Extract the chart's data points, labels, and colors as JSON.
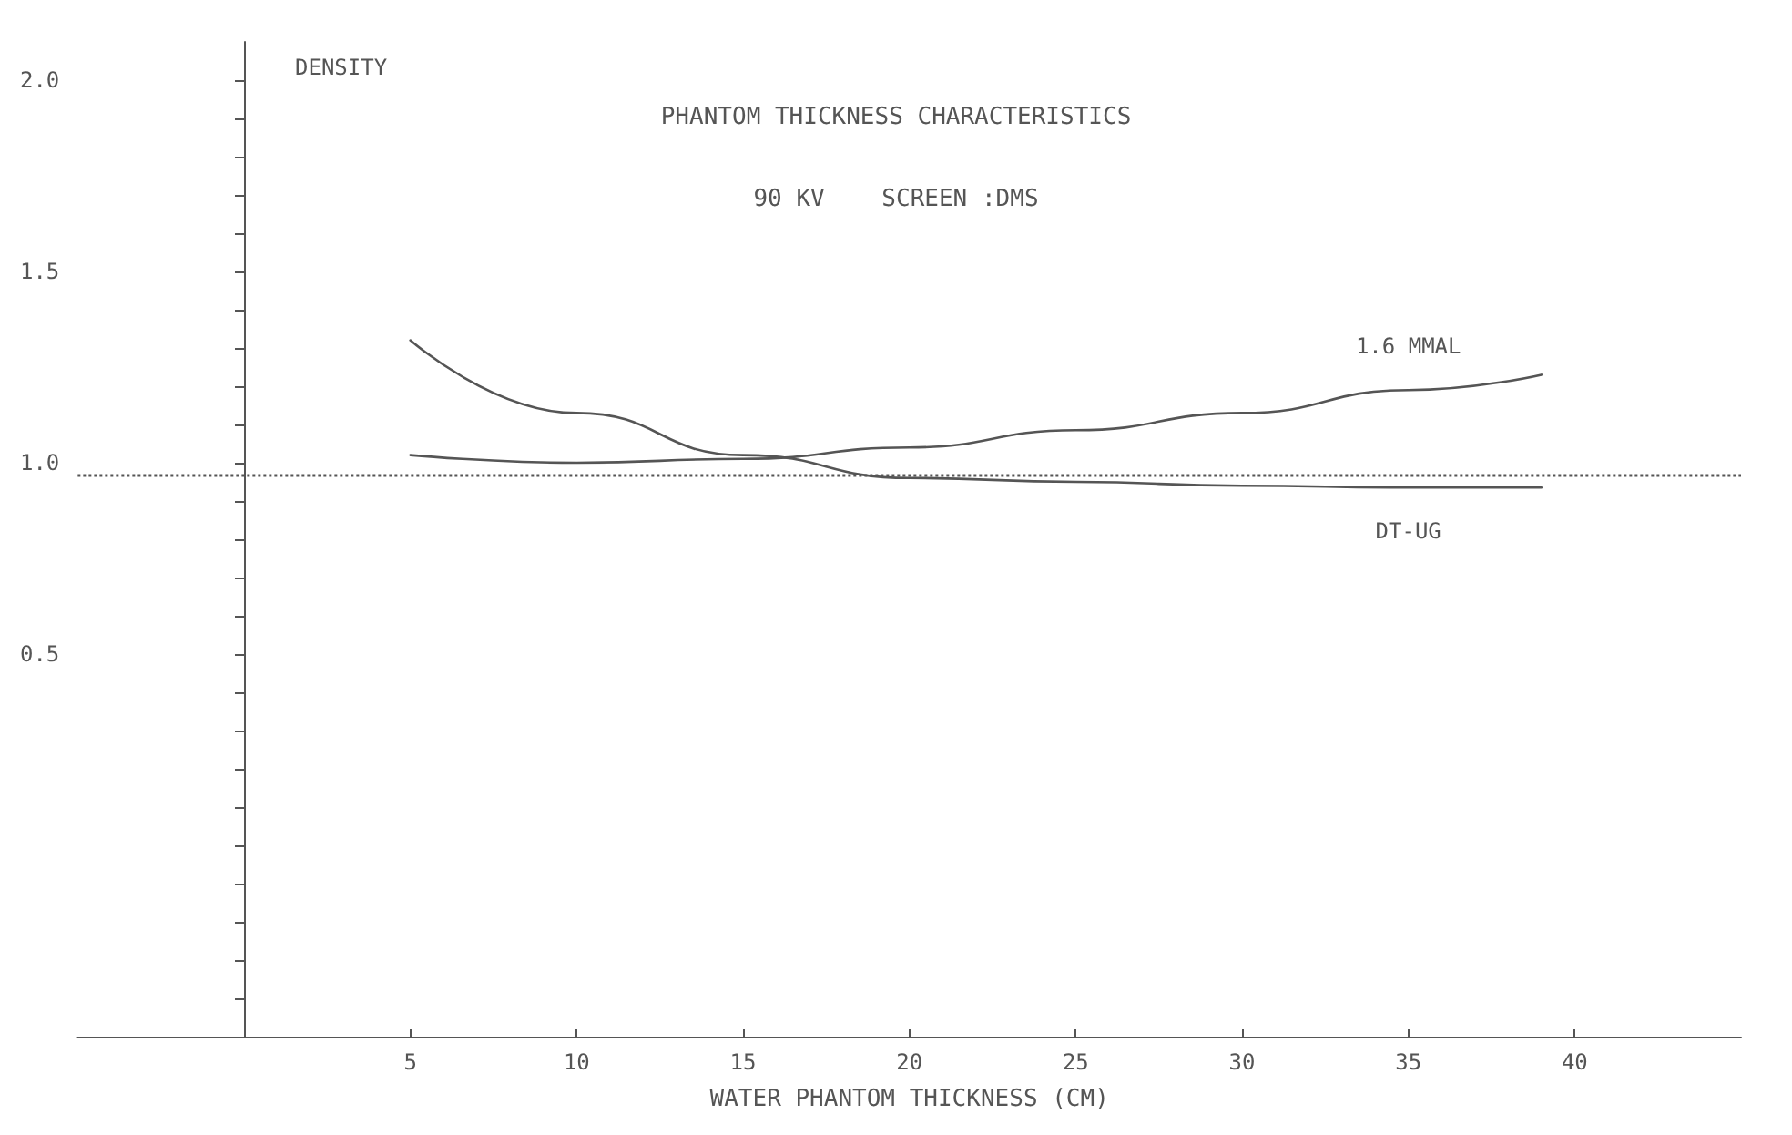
{
  "chart_data": {
    "type": "line",
    "title": "PHANTOM THICKNESS CHARACTERISTICS",
    "subtitle": "90 KV    SCREEN :DMS",
    "xlabel": "WATER PHANTOM THICKNESS (CM)",
    "ylabel": "DENSITY",
    "x": [
      5,
      10,
      15,
      20,
      25,
      30,
      35,
      39
    ],
    "series": [
      {
        "name": "1.6 MMAL",
        "color": "#555555",
        "values": [
          1.02,
          1.0,
          1.01,
          1.04,
          1.085,
          1.13,
          1.19,
          1.23
        ]
      },
      {
        "name": "DT-UG",
        "color": "#555555",
        "values": [
          1.32,
          1.13,
          1.02,
          0.96,
          0.95,
          0.94,
          0.935,
          0.935
        ]
      }
    ],
    "xlim": [
      -5,
      45
    ],
    "ylim": [
      -0.5,
      2.1
    ],
    "xticks": [
      5,
      10,
      15,
      20,
      25,
      30,
      35,
      40
    ],
    "yticks": [
      {
        "value": -0.4,
        "label": null
      },
      {
        "value": -0.3,
        "label": null
      },
      {
        "value": -0.2,
        "label": null
      },
      {
        "value": -0.1,
        "label": null
      },
      {
        "value": 0,
        "label": null
      },
      {
        "value": 0.1,
        "label": null
      },
      {
        "value": 0.2,
        "label": null
      },
      {
        "value": 0.3,
        "label": null
      },
      {
        "value": 0.4,
        "label": null
      },
      {
        "value": 0.5,
        "label": "0.5"
      },
      {
        "value": 0.6,
        "label": null
      },
      {
        "value": 0.7,
        "label": null
      },
      {
        "value": 0.8,
        "label": null
      },
      {
        "value": 0.9,
        "label": null
      },
      {
        "value": 1.0,
        "label": "1.0"
      },
      {
        "value": 1.1,
        "label": null
      },
      {
        "value": 1.2,
        "label": null
      },
      {
        "value": 1.3,
        "label": null
      },
      {
        "value": 1.4,
        "label": null
      },
      {
        "value": 1.5,
        "label": "1.5"
      },
      {
        "value": 1.6,
        "label": null
      },
      {
        "value": 1.7,
        "label": null
      },
      {
        "value": 1.8,
        "label": null
      },
      {
        "value": 1.9,
        "label": null
      },
      {
        "value": 2.0,
        "label": "2.0"
      }
    ],
    "ref_lines": [
      {
        "axis": "y",
        "value": 0.97,
        "line_style": "dotted",
        "color": "#555555"
      }
    ],
    "grid": false,
    "legend": false,
    "marker": "none",
    "line_style": "solid"
  }
}
